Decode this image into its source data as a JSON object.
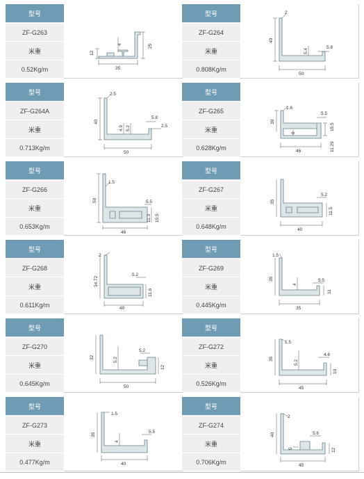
{
  "labels": {
    "model": "型号",
    "weight": "米重"
  },
  "items": [
    {
      "code": "ZF-G263",
      "weight": "0.52Kg/m",
      "dims": [
        "4",
        "12",
        "25",
        "35"
      ]
    },
    {
      "code": "ZF-G264",
      "weight": "0.808Kg/m",
      "dims": [
        "2",
        "40",
        "5.4",
        "5.8",
        "50"
      ]
    },
    {
      "code": "ZF-G264A",
      "weight": "0.713Kg/m",
      "dims": [
        "2.5",
        "40",
        "4.9",
        "5.2",
        "5.8",
        "2.5",
        "50"
      ]
    },
    {
      "code": "ZF-G265",
      "weight": "0.628Kg/m",
      "dims": [
        "1.6",
        "30",
        "8",
        "5.5",
        "15.5",
        "11.29",
        "46"
      ]
    },
    {
      "code": "ZF-G266",
      "weight": "0.653Kg/m",
      "dims": [
        "1.5",
        "50",
        "5.5",
        "11.3",
        "15.5",
        "46"
      ]
    },
    {
      "code": "ZF-G267",
      "weight": "0.648Kg/m",
      "dims": [
        "35",
        "5.2",
        "11.5",
        "40"
      ]
    },
    {
      "code": "ZF-G268",
      "weight": "0.611Kg/m",
      "dims": [
        "2",
        "34.72",
        "5.2",
        "11.6",
        "40"
      ]
    },
    {
      "code": "ZF-G269",
      "weight": "0.445Kg/m",
      "dims": [
        "1.5",
        "35",
        "4",
        "5.5",
        "11",
        "35"
      ]
    },
    {
      "code": "ZF-G270",
      "weight": "0.645Kg/m",
      "dims": [
        "32",
        "5.2",
        "5.2",
        "12",
        "50"
      ]
    },
    {
      "code": "ZF-G272",
      "weight": "0.526Kg/m",
      "dims": [
        "1.5",
        "35",
        "5.2",
        "4.6",
        "10",
        "45"
      ]
    },
    {
      "code": "ZF-G273",
      "weight": "0.477Kg/m",
      "dims": [
        "1.5",
        "35",
        "4",
        "5.5",
        "40"
      ]
    },
    {
      "code": "ZF-G274",
      "weight": "0.706Kg/m",
      "dims": [
        "2",
        "40",
        "5.6",
        "5",
        "12",
        "45"
      ]
    }
  ]
}
